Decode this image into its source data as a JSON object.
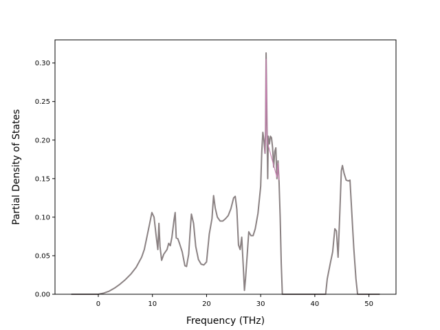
{
  "chart_data": {
    "type": "line",
    "title": "",
    "xlabel": "Frequency (THz)",
    "ylabel": "Partial Density of States",
    "xlim": [
      -8.0,
      55.0
    ],
    "ylim": [
      0.0,
      0.33
    ],
    "grid": false,
    "legend": "none",
    "xticks": [
      0,
      10,
      20,
      30,
      40,
      50
    ],
    "xtick_labels": [
      "0",
      "10",
      "20",
      "30",
      "40",
      "50"
    ],
    "yticks": [
      0.0,
      0.05,
      0.1,
      0.15,
      0.2,
      0.25,
      0.3
    ],
    "ytick_labels": [
      "0.00",
      "0.05",
      "0.10",
      "0.15",
      "0.20",
      "0.25",
      "0.30"
    ],
    "colors": {
      "primary": "#8a8182",
      "secondary": "#c77fb0",
      "axes": "#000000"
    },
    "series": [
      {
        "color": "#8a8182",
        "points": [
          [
            -5.0,
            0.0
          ],
          [
            -1.0,
            0.0
          ],
          [
            0.0,
            0.0
          ],
          [
            1.0,
            0.0015
          ],
          [
            2.0,
            0.004
          ],
          [
            3.0,
            0.008
          ],
          [
            4.0,
            0.013
          ],
          [
            5.0,
            0.019
          ],
          [
            6.0,
            0.026
          ],
          [
            7.0,
            0.035
          ],
          [
            8.0,
            0.048
          ],
          [
            8.5,
            0.058
          ],
          [
            9.0,
            0.075
          ],
          [
            9.5,
            0.092
          ],
          [
            9.9,
            0.106
          ],
          [
            10.3,
            0.1
          ],
          [
            10.7,
            0.075
          ],
          [
            11.0,
            0.058
          ],
          [
            11.2,
            0.092
          ],
          [
            11.4,
            0.062
          ],
          [
            11.7,
            0.044
          ],
          [
            12.1,
            0.052
          ],
          [
            12.7,
            0.058
          ],
          [
            13.0,
            0.066
          ],
          [
            13.3,
            0.063
          ],
          [
            13.6,
            0.074
          ],
          [
            14.0,
            0.097
          ],
          [
            14.2,
            0.106
          ],
          [
            14.4,
            0.073
          ],
          [
            14.7,
            0.072
          ],
          [
            15.0,
            0.066
          ],
          [
            15.5,
            0.055
          ],
          [
            16.0,
            0.037
          ],
          [
            16.3,
            0.036
          ],
          [
            16.7,
            0.052
          ],
          [
            17.0,
            0.085
          ],
          [
            17.2,
            0.104
          ],
          [
            17.6,
            0.092
          ],
          [
            18.0,
            0.062
          ],
          [
            18.5,
            0.045
          ],
          [
            19.0,
            0.039
          ],
          [
            19.5,
            0.038
          ],
          [
            20.0,
            0.042
          ],
          [
            20.5,
            0.078
          ],
          [
            21.0,
            0.098
          ],
          [
            21.3,
            0.128
          ],
          [
            21.6,
            0.112
          ],
          [
            22.0,
            0.1
          ],
          [
            22.5,
            0.095
          ],
          [
            23.0,
            0.095
          ],
          [
            23.5,
            0.098
          ],
          [
            24.0,
            0.102
          ],
          [
            24.5,
            0.111
          ],
          [
            25.0,
            0.125
          ],
          [
            25.3,
            0.127
          ],
          [
            25.6,
            0.11
          ],
          [
            25.9,
            0.064
          ],
          [
            26.2,
            0.058
          ],
          [
            26.5,
            0.074
          ],
          [
            26.8,
            0.034
          ],
          [
            27.0,
            0.005
          ],
          [
            27.2,
            0.02
          ],
          [
            27.5,
            0.05
          ],
          [
            27.8,
            0.081
          ],
          [
            28.2,
            0.076
          ],
          [
            28.6,
            0.076
          ],
          [
            29.0,
            0.085
          ],
          [
            29.5,
            0.105
          ],
          [
            30.0,
            0.14
          ],
          [
            30.2,
            0.185
          ],
          [
            30.4,
            0.21
          ],
          [
            30.6,
            0.2
          ],
          [
            30.8,
            0.183
          ],
          [
            30.9,
            0.21
          ],
          [
            31.0,
            0.313
          ],
          [
            31.1,
            0.26
          ],
          [
            31.2,
            0.2
          ],
          [
            31.3,
            0.15
          ],
          [
            31.4,
            0.205
          ],
          [
            31.6,
            0.195
          ],
          [
            31.8,
            0.205
          ],
          [
            32.0,
            0.203
          ],
          [
            32.2,
            0.19
          ],
          [
            32.4,
            0.165
          ],
          [
            32.6,
            0.185
          ],
          [
            32.8,
            0.19
          ],
          [
            33.0,
            0.15
          ],
          [
            33.2,
            0.173
          ],
          [
            33.4,
            0.145
          ],
          [
            33.6,
            0.1
          ],
          [
            33.8,
            0.04
          ],
          [
            34.0,
            0.0
          ],
          [
            38.0,
            0.0
          ],
          [
            42.0,
            0.0
          ],
          [
            42.3,
            0.02
          ],
          [
            42.8,
            0.038
          ],
          [
            43.3,
            0.055
          ],
          [
            43.7,
            0.085
          ],
          [
            44.0,
            0.082
          ],
          [
            44.3,
            0.048
          ],
          [
            44.6,
            0.102
          ],
          [
            44.9,
            0.16
          ],
          [
            45.1,
            0.167
          ],
          [
            45.4,
            0.157
          ],
          [
            45.8,
            0.148
          ],
          [
            46.2,
            0.147
          ],
          [
            46.5,
            0.148
          ],
          [
            46.8,
            0.11
          ],
          [
            47.2,
            0.06
          ],
          [
            47.6,
            0.02
          ],
          [
            47.9,
            0.0
          ],
          [
            50.0,
            0.0
          ],
          [
            52.0,
            0.0
          ]
        ]
      },
      {
        "color": "#c77fb0",
        "points": [
          [
            30.8,
            0.183
          ],
          [
            30.9,
            0.21
          ],
          [
            31.0,
            0.305
          ],
          [
            31.1,
            0.255
          ],
          [
            31.2,
            0.198
          ],
          [
            33.0,
            0.152
          ],
          [
            33.2,
            0.17
          ],
          [
            33.4,
            0.148
          ]
        ]
      }
    ]
  }
}
